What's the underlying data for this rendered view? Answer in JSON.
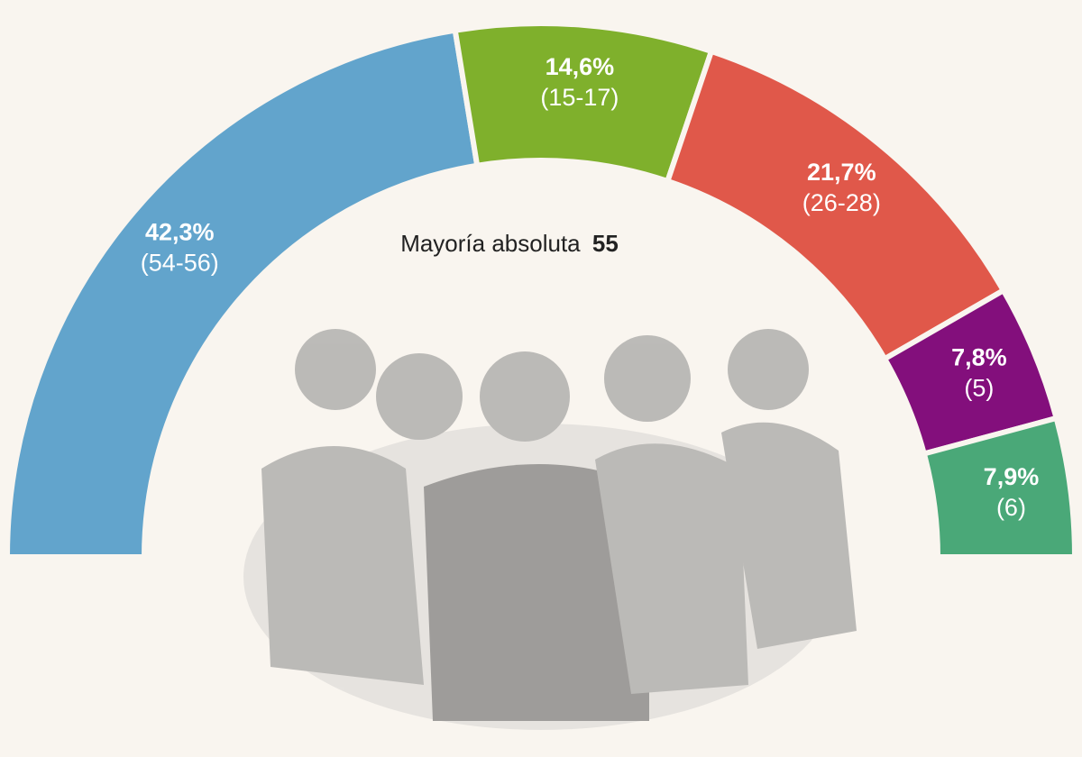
{
  "chart_data": {
    "type": "pie",
    "values": [
      42.3,
      14.6,
      21.7,
      7.8,
      7.9
    ],
    "value_labels": [
      "42,3%",
      "14,6%",
      "21,7%",
      "7,8%",
      "7,9%"
    ],
    "seats": [
      "(54-56)",
      "(15-17)",
      "(26-28)",
      "(5)",
      "(6)"
    ],
    "colors": [
      "#62a4cc",
      "#7fb02c",
      "#e0584a",
      "#830f7c",
      "#4aa878"
    ],
    "annotation": {
      "text": "Mayoría absoluta",
      "value": 55
    }
  }
}
